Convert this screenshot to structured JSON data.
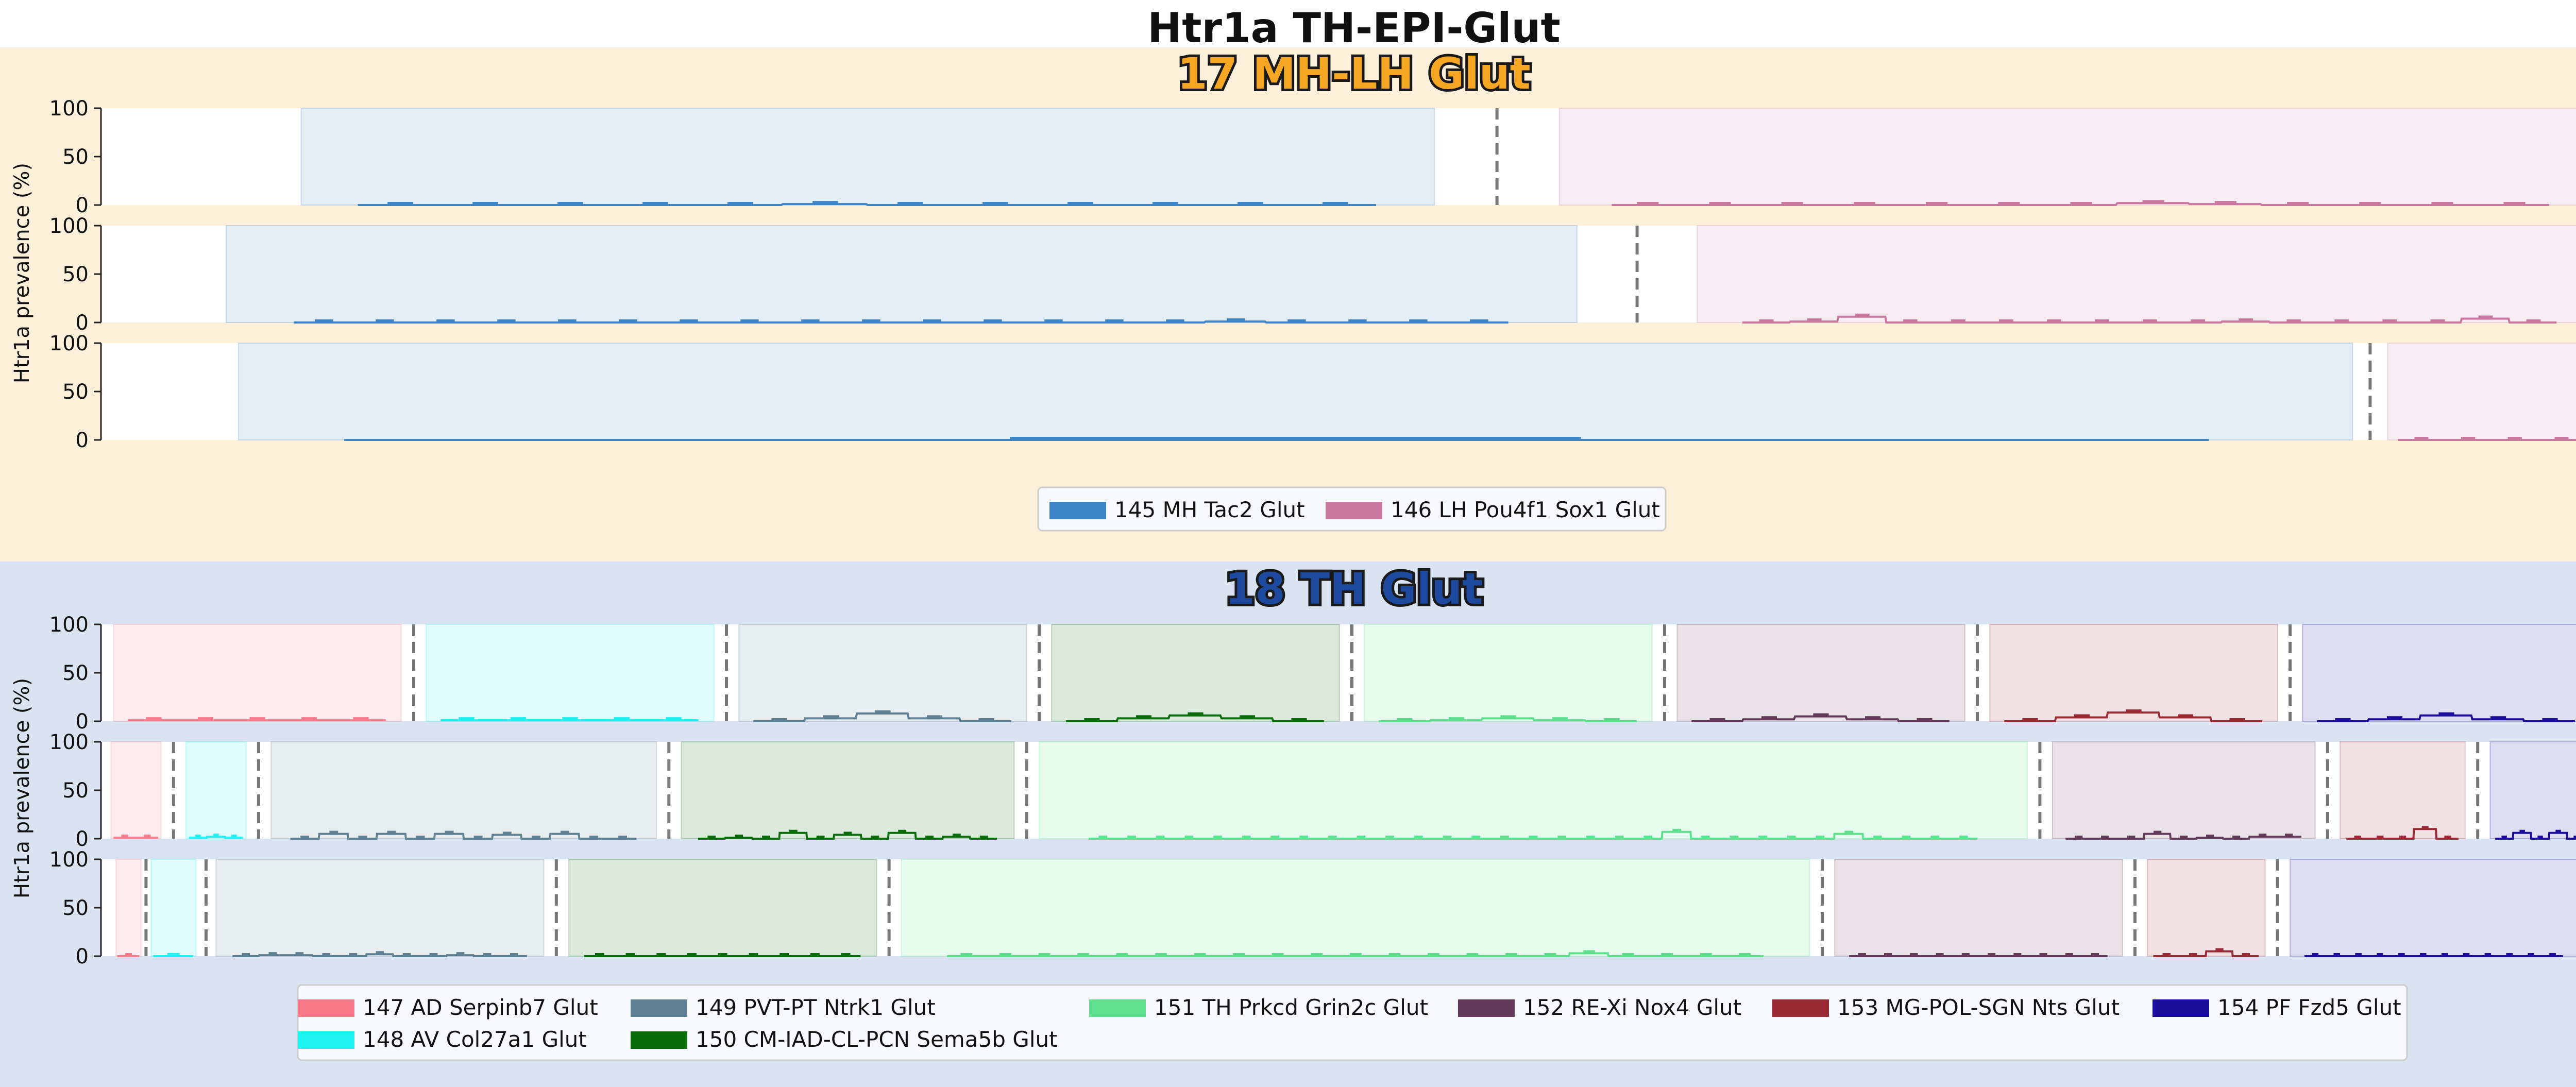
{
  "figure": {
    "title": "Htr1a TH-EPI-Glut",
    "ylabel": "Htr1a prevalence (%)"
  },
  "colors": {
    "group1_bg": "#fdf0da",
    "group2_bg": "#d9e3f1",
    "group1_title": "#f5a623",
    "group2_title": "#1d4a9e",
    "legend_bg": "#f7f9fc",
    "legend_border": "#cccccc",
    "divider": "#777777"
  },
  "chart_data": [
    {
      "type": "line",
      "title": "17 MH-LH Glut",
      "ylabel": "Htr1a prevalence (%)",
      "ylim": [
        0,
        100
      ],
      "yticks": [
        "0",
        "50",
        "100"
      ],
      "legend_placement": "bottom-center",
      "legend": [
        {
          "name": "145 MH Tac2 Glut",
          "color": "#3d85c6"
        },
        {
          "name": "146 LH Pou4f1 Sox1 Glut",
          "color": "#c9789f"
        }
      ],
      "rows": [
        [
          {
            "series": 0,
            "values": [
              0,
              0,
              0,
              0,
              0,
              1,
              0,
              0,
              0,
              0,
              0,
              0
            ]
          },
          {
            "series": 1,
            "values": [
              0,
              0,
              0,
              0,
              0,
              0,
              0,
              2,
              1,
              0,
              0,
              0,
              0
            ]
          }
        ],
        [
          {
            "series": 0,
            "values": [
              0,
              0,
              0,
              0,
              0,
              0,
              0,
              0,
              0,
              0,
              0,
              0,
              0,
              0,
              0,
              1,
              0,
              0,
              0,
              0
            ]
          },
          {
            "series": 1,
            "values": [
              0,
              1,
              6,
              0,
              0,
              0,
              0,
              0,
              0,
              0,
              1,
              0,
              0,
              0,
              0,
              4,
              0
            ]
          }
        ],
        [
          {
            "series": 0,
            "values": [
              0
            ]
          },
          {
            "series": 1,
            "values": [
              0,
              0,
              0,
              0
            ]
          }
        ]
      ]
    },
    {
      "type": "line",
      "title": "18 TH Glut",
      "ylabel": "Htr1a prevalence (%)",
      "ylim": [
        0,
        100
      ],
      "yticks": [
        "0",
        "50",
        "100"
      ],
      "legend_placement": "bottom-center",
      "legend": [
        {
          "name": "147 AD Serpinb7 Glut",
          "color": "#f77b8a"
        },
        {
          "name": "148 AV Col27a1 Glut",
          "color": "#1ef1f1"
        },
        {
          "name": "149 PVT-PT Ntrk1 Glut",
          "color": "#5e8092"
        },
        {
          "name": "150 CM-IAD-CL-PCN Sema5b Glut",
          "color": "#0a6b0a"
        },
        {
          "name": "151 TH Prkcd Grin2c Glut",
          "color": "#5fe08f"
        },
        {
          "name": "152 RE-Xi Nox4 Glut",
          "color": "#643a5a"
        },
        {
          "name": "153 MG-POL-SGN Nts Glut",
          "color": "#9a2a34"
        },
        {
          "name": "154 PF Fzd5 Glut",
          "color": "#1d0d9b"
        }
      ],
      "rows": [
        [
          {
            "series": 0,
            "values": [
              1,
              1,
              1,
              1,
              1
            ]
          },
          {
            "series": 1,
            "values": [
              1,
              1,
              1,
              1,
              1
            ]
          },
          {
            "series": 2,
            "values": [
              0,
              3,
              8,
              3,
              0
            ]
          },
          {
            "series": 3,
            "values": [
              0,
              3,
              6,
              3,
              0
            ]
          },
          {
            "series": 4,
            "values": [
              0,
              1,
              3,
              1,
              0
            ]
          },
          {
            "series": 5,
            "values": [
              0,
              2,
              5,
              2,
              0
            ]
          },
          {
            "series": 6,
            "values": [
              0,
              4,
              9,
              4,
              0
            ]
          },
          {
            "series": 7,
            "values": [
              0,
              2,
              6,
              2,
              0
            ]
          }
        ],
        [
          {
            "series": 0,
            "values": [
              1,
              1
            ]
          },
          {
            "series": 1,
            "values": [
              1,
              2,
              1
            ]
          },
          {
            "series": 2,
            "values": [
              0,
              5,
              0,
              5,
              0,
              5,
              0,
              4,
              0,
              5,
              0,
              0
            ]
          },
          {
            "series": 3,
            "values": [
              0,
              1,
              0,
              6,
              0,
              4,
              0,
              6,
              0,
              2,
              0
            ]
          },
          {
            "series": 4,
            "values": [
              0,
              0,
              0,
              0,
              0,
              0,
              0,
              0,
              0,
              0,
              0,
              0,
              0,
              0,
              0,
              0,
              0,
              0,
              0,
              0,
              7,
              0,
              0,
              0,
              0,
              0,
              5,
              0,
              0,
              0,
              0
            ]
          },
          {
            "series": 5,
            "values": [
              0,
              0,
              0,
              5,
              0,
              1,
              0,
              2,
              2
            ]
          },
          {
            "series": 6,
            "values": [
              0,
              0,
              0,
              10,
              0
            ]
          },
          {
            "series": 7,
            "values": [
              0,
              6,
              0,
              6,
              0
            ]
          }
        ],
        [
          {
            "series": 0,
            "values": [
              0
            ]
          },
          {
            "series": 1,
            "values": [
              0
            ]
          },
          {
            "series": 2,
            "values": [
              0,
              1,
              1,
              0,
              0,
              2,
              0,
              0,
              1,
              0,
              0
            ]
          },
          {
            "series": 3,
            "values": [
              0,
              0,
              0,
              0,
              0,
              0,
              0,
              0,
              0
            ]
          },
          {
            "series": 4,
            "values": [
              0,
              0,
              0,
              0,
              0,
              0,
              0,
              0,
              0,
              0,
              0,
              0,
              0,
              0,
              0,
              0,
              3,
              0,
              0,
              0,
              0
            ]
          },
          {
            "series": 5,
            "values": [
              0,
              0,
              0,
              0,
              0,
              0,
              0,
              0,
              0,
              0
            ]
          },
          {
            "series": 6,
            "values": [
              0,
              0,
              5,
              0
            ]
          },
          {
            "series": 7,
            "values": [
              0,
              0,
              0,
              0,
              0,
              0,
              0,
              0,
              0,
              0,
              0,
              0
            ]
          }
        ]
      ]
    }
  ]
}
